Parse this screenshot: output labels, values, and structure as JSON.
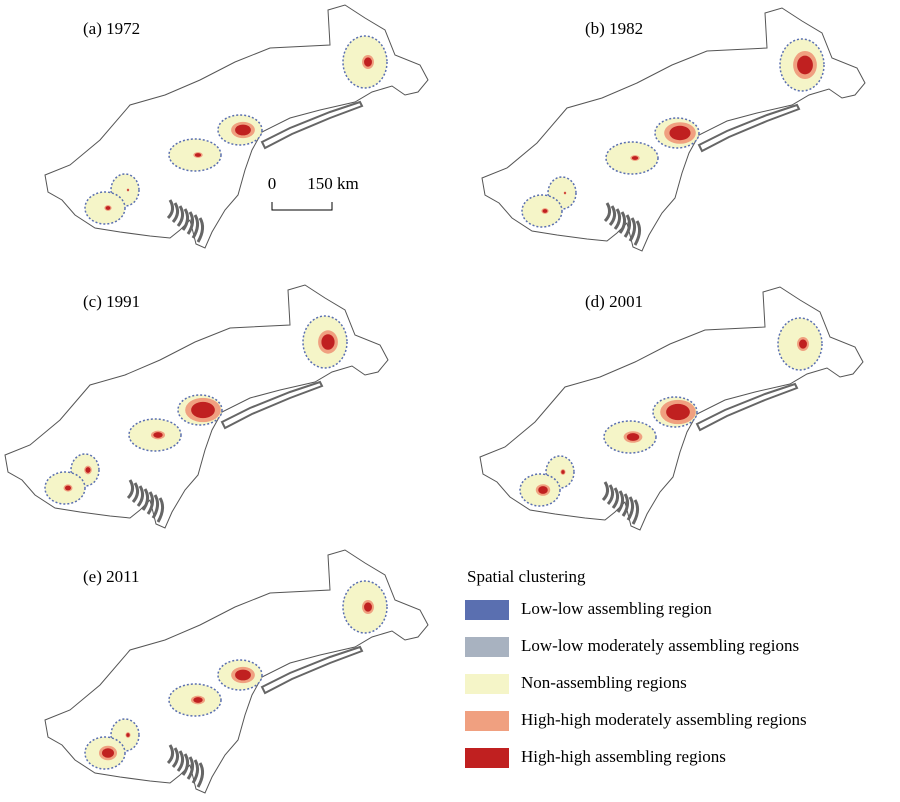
{
  "panels": [
    {
      "label": "(a) 1972"
    },
    {
      "label": "(b) 1982"
    },
    {
      "label": "(c) 1991"
    },
    {
      "label": "(d) 2001"
    },
    {
      "label": "(e) 2011"
    }
  ],
  "scale_bar": {
    "start": "0",
    "end": "150 km"
  },
  "legend": {
    "title": "Spatial clustering",
    "items": [
      {
        "label": "Low-low assembling region",
        "color": "#5a6fb0"
      },
      {
        "label": "Low-low moderately assembling regions",
        "color": "#a8b2c0"
      },
      {
        "label": "Non-assembling regions",
        "color": "#f5f5c8"
      },
      {
        "label": "High-high moderately assembling regions",
        "color": "#f0a080"
      },
      {
        "label": "High-high assembling regions",
        "color": "#c02020"
      }
    ]
  }
}
